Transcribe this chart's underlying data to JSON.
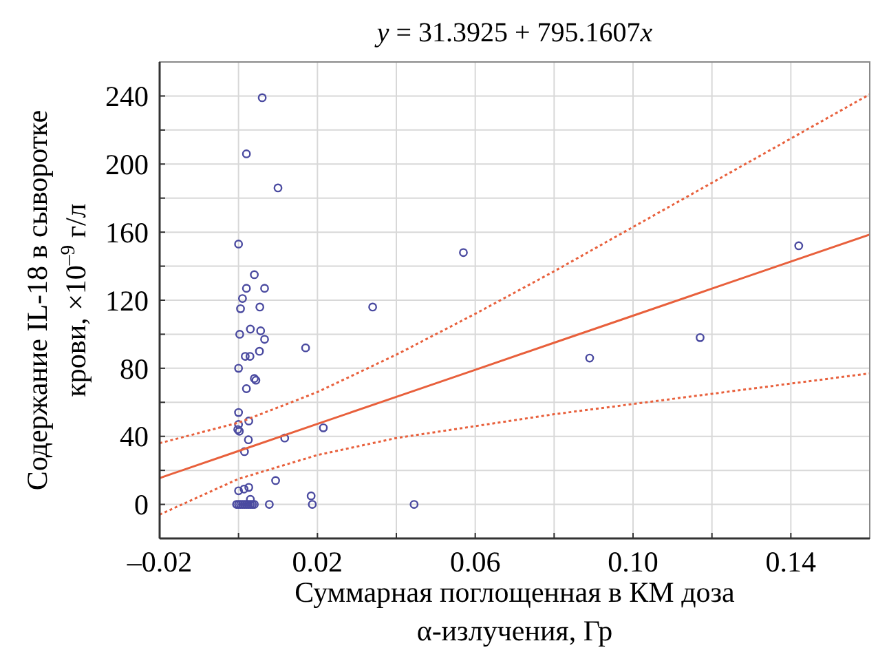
{
  "chart_data": {
    "type": "scatter",
    "title": "y = 31.3925 + 795.1607x",
    "xlabel": "Суммарная поглощенная в КМ доза α-излучения, Гр",
    "ylabel": "Содержание IL-18 в сыворотке крови, ×10$^{–9}$ г/л",
    "xlim": [
      -0.02,
      0.16
    ],
    "ylim": [
      -20,
      260
    ],
    "xticks": [
      {
        "value": -0.02,
        "label": "–0.02"
      },
      {
        "value": 0,
        "label": null
      },
      {
        "value": 0.02,
        "label": "0.02"
      },
      {
        "value": 0.04,
        "label": null
      },
      {
        "value": 0.06,
        "label": "0.06"
      },
      {
        "value": 0.08,
        "label": null
      },
      {
        "value": 0.1,
        "label": "0.10"
      },
      {
        "value": 0.12,
        "label": null
      },
      {
        "value": 0.14,
        "label": "0.14"
      }
    ],
    "yticks": [
      {
        "value": -20,
        "label": null
      },
      0,
      {
        "value": 20,
        "label": null
      },
      40,
      {
        "value": 60,
        "label": null
      },
      80,
      {
        "value": 100,
        "label": null
      },
      120,
      {
        "value": 140,
        "label": null
      },
      160,
      {
        "value": 180,
        "label": null
      },
      200,
      {
        "value": 220,
        "label": null
      },
      240
    ],
    "grid": true,
    "series": [
      {
        "color": "#4a4aa0",
        "marker": "circle",
        "x": [
          0.006,
          0.002,
          0.01,
          0,
          0.004,
          0.002,
          0.0066,
          0.001,
          0.0005,
          0.0054,
          0.003,
          0.0056,
          0.0003,
          0.0066,
          0.017,
          0.0017,
          0.0029,
          0.0053,
          0,
          0.004,
          0.0044,
          0.002,
          0,
          0.0026,
          0,
          -0.0002,
          0.0002,
          0.0025,
          0.0117,
          0.0215,
          0.0015,
          0.0094,
          0,
          0.0014,
          0.0026,
          0.0184,
          0.003,
          -0.0005,
          0,
          0.0005,
          0.001,
          0.0015,
          0.002,
          0.0025,
          0.003,
          0.0035,
          0.004,
          0.0078,
          0.0187,
          0.0445,
          0.034,
          0.057,
          0.089,
          0.117,
          0.142
        ],
        "values": [
          239,
          206,
          186,
          153,
          135,
          127,
          127,
          121,
          115,
          116,
          103,
          102,
          100,
          97,
          92,
          87,
          87,
          90,
          80,
          74,
          73,
          68,
          54,
          49,
          47,
          44,
          43,
          38,
          39,
          45,
          31,
          14,
          8,
          9,
          10,
          5,
          3,
          0,
          0,
          0,
          0,
          0,
          0,
          0,
          0,
          0,
          0,
          0,
          0,
          0,
          116,
          148,
          86,
          98,
          152
        ]
      },
      {
        "type": "line",
        "color": "#e8603c",
        "line_style": "solid",
        "marker": "none",
        "x": [
          -0.02,
          0,
          0.02,
          0.04,
          0.06,
          0.08,
          0.1,
          0.12,
          0.14,
          0.16
        ],
        "values": [
          15.5,
          31.4,
          47.3,
          63.2,
          79.1,
          95,
          110.9,
          126.8,
          142.7,
          158.6
        ]
      },
      {
        "type": "line",
        "color": "#e8603c",
        "line_style": "dotted",
        "marker": "none",
        "x": [
          -0.02,
          0,
          0.02,
          0.04,
          0.06,
          0.08,
          0.1,
          0.12,
          0.14,
          0.16
        ],
        "values": [
          -6,
          15,
          29,
          39,
          46,
          53,
          59,
          65,
          71,
          77
        ]
      },
      {
        "type": "line",
        "color": "#e8603c",
        "line_style": "dotted",
        "marker": "none",
        "x": [
          -0.02,
          0,
          0.02,
          0.04,
          0.06,
          0.08,
          0.1,
          0.12,
          0.14,
          0.16
        ],
        "values": [
          36,
          48,
          66,
          88,
          112,
          137,
          163,
          189,
          215,
          241
        ]
      }
    ]
  }
}
